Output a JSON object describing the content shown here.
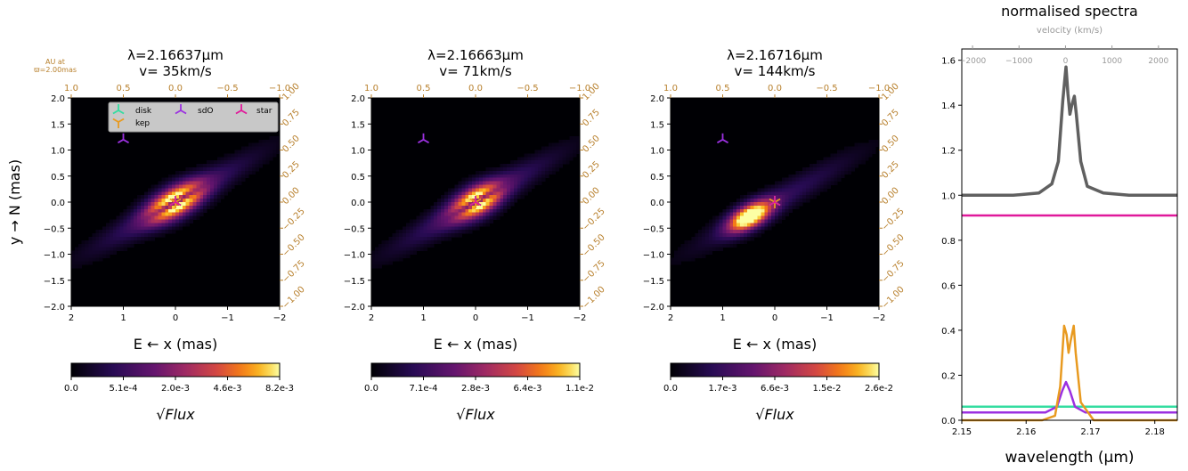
{
  "colors": {
    "orange": "#b8802d",
    "disk": "#33dda0",
    "kep": "#e89a20",
    "sdO": "#9b30e0",
    "star": "#e0189a",
    "total": "#606060",
    "axis": "#000000"
  },
  "panel_common": {
    "xlabel": "E ← x (mas)",
    "ylabel": "y → N (mas)",
    "au_label_line1": "AU at",
    "au_label_line2": "ϖ=2.00mas",
    "colorbar_label": "√Flux",
    "x_ticks": [
      "2",
      "1",
      "0",
      "−1",
      "−2"
    ],
    "y_ticks": [
      "2.0",
      "1.5",
      "1.0",
      "0.5",
      "0.0",
      "−0.5",
      "−1.0",
      "−1.5",
      "−2.0"
    ],
    "top_ticks": [
      "1.0",
      "0.5",
      "0.0",
      "−0.5",
      "−1.0"
    ],
    "right_ticks": [
      "1.00",
      "0.75",
      "0.50",
      "0.25",
      "0.00",
      "−0.25",
      "−0.50",
      "−0.75",
      "−1.00"
    ],
    "legend": [
      {
        "name": "disk",
        "icon": "tri-down"
      },
      {
        "name": "kep",
        "icon": "tri-up"
      },
      {
        "name": "sdO",
        "icon": "tri-down"
      },
      {
        "name": "star",
        "icon": "tri-down"
      }
    ]
  },
  "chart_data": [
    {
      "type": "heatmap",
      "title_line1": "λ=2.16637μm",
      "title_line2": "v= 35km/s",
      "xlim": [
        2,
        -2
      ],
      "ylim": [
        -2,
        2
      ],
      "colorbar_ticks": [
        "0.0",
        "5.1e-4",
        "2.0e-3",
        "4.6e-3",
        "8.2e-3"
      ],
      "sdO_marker": {
        "x": 1.0,
        "y": 1.2
      },
      "emission": "two-lobe"
    },
    {
      "type": "heatmap",
      "title_line1": "λ=2.16663μm",
      "title_line2": "v= 71km/s",
      "xlim": [
        2,
        -2
      ],
      "ylim": [
        -2,
        2
      ],
      "colorbar_ticks": [
        "0.0",
        "7.1e-4",
        "2.8e-3",
        "6.4e-3",
        "1.1e-2"
      ],
      "sdO_marker": {
        "x": 1.0,
        "y": 1.2
      },
      "emission": "two-lobe"
    },
    {
      "type": "heatmap",
      "title_line1": "λ=2.16716μm",
      "title_line2": "v= 144km/s",
      "xlim": [
        2,
        -2
      ],
      "ylim": [
        -2,
        2
      ],
      "colorbar_ticks": [
        "0.0",
        "1.7e-3",
        "6.6e-3",
        "1.5e-2",
        "2.6e-2"
      ],
      "sdO_marker": {
        "x": 1.0,
        "y": 1.2
      },
      "emission": "one-side"
    },
    {
      "type": "line",
      "title": "normalised spectra",
      "top_axis_label": "velocity (km/s)",
      "top_ticks": [
        -2000,
        -1000,
        0,
        1000,
        2000
      ],
      "xlabel": "wavelength (μm)",
      "xlim": [
        2.15,
        2.1835
      ],
      "ylim": [
        0,
        1.65
      ],
      "x_ticks": [
        "2.15",
        "2.16",
        "2.17",
        "2.18"
      ],
      "y_ticks": [
        "0.0",
        "0.2",
        "0.4",
        "0.6",
        "0.8",
        "1.0",
        "1.2",
        "1.4",
        "1.6"
      ],
      "series": [
        {
          "name": "total",
          "x": [
            2.15,
            2.158,
            2.162,
            2.164,
            2.165,
            2.1657,
            2.1662,
            2.1665,
            2.1668,
            2.1671,
            2.1675,
            2.1678,
            2.1685,
            2.1695,
            2.172,
            2.176,
            2.1835
          ],
          "y": [
            1.0,
            1.0,
            1.01,
            1.05,
            1.15,
            1.42,
            1.57,
            1.45,
            1.36,
            1.4,
            1.44,
            1.36,
            1.15,
            1.04,
            1.01,
            1.0,
            1.0
          ]
        },
        {
          "name": "star",
          "x": [
            2.15,
            2.1835
          ],
          "y": [
            0.91,
            0.91
          ]
        },
        {
          "name": "disk",
          "x": [
            2.15,
            2.1835
          ],
          "y": [
            0.06,
            0.06
          ]
        },
        {
          "name": "sdO",
          "x": [
            2.15,
            2.163,
            2.1648,
            2.1656,
            2.1662,
            2.1668,
            2.1676,
            2.1692,
            2.1835
          ],
          "y": [
            0.035,
            0.035,
            0.06,
            0.13,
            0.17,
            0.13,
            0.06,
            0.035,
            0.035
          ]
        },
        {
          "name": "kep",
          "x": [
            2.15,
            2.1625,
            2.1645,
            2.1653,
            2.1659,
            2.1663,
            2.1666,
            2.1669,
            2.1674,
            2.1677,
            2.1685,
            2.1705,
            2.1835
          ],
          "y": [
            0.0,
            0.0,
            0.02,
            0.15,
            0.42,
            0.38,
            0.3,
            0.35,
            0.42,
            0.3,
            0.08,
            0.0,
            0.0
          ]
        }
      ]
    }
  ]
}
